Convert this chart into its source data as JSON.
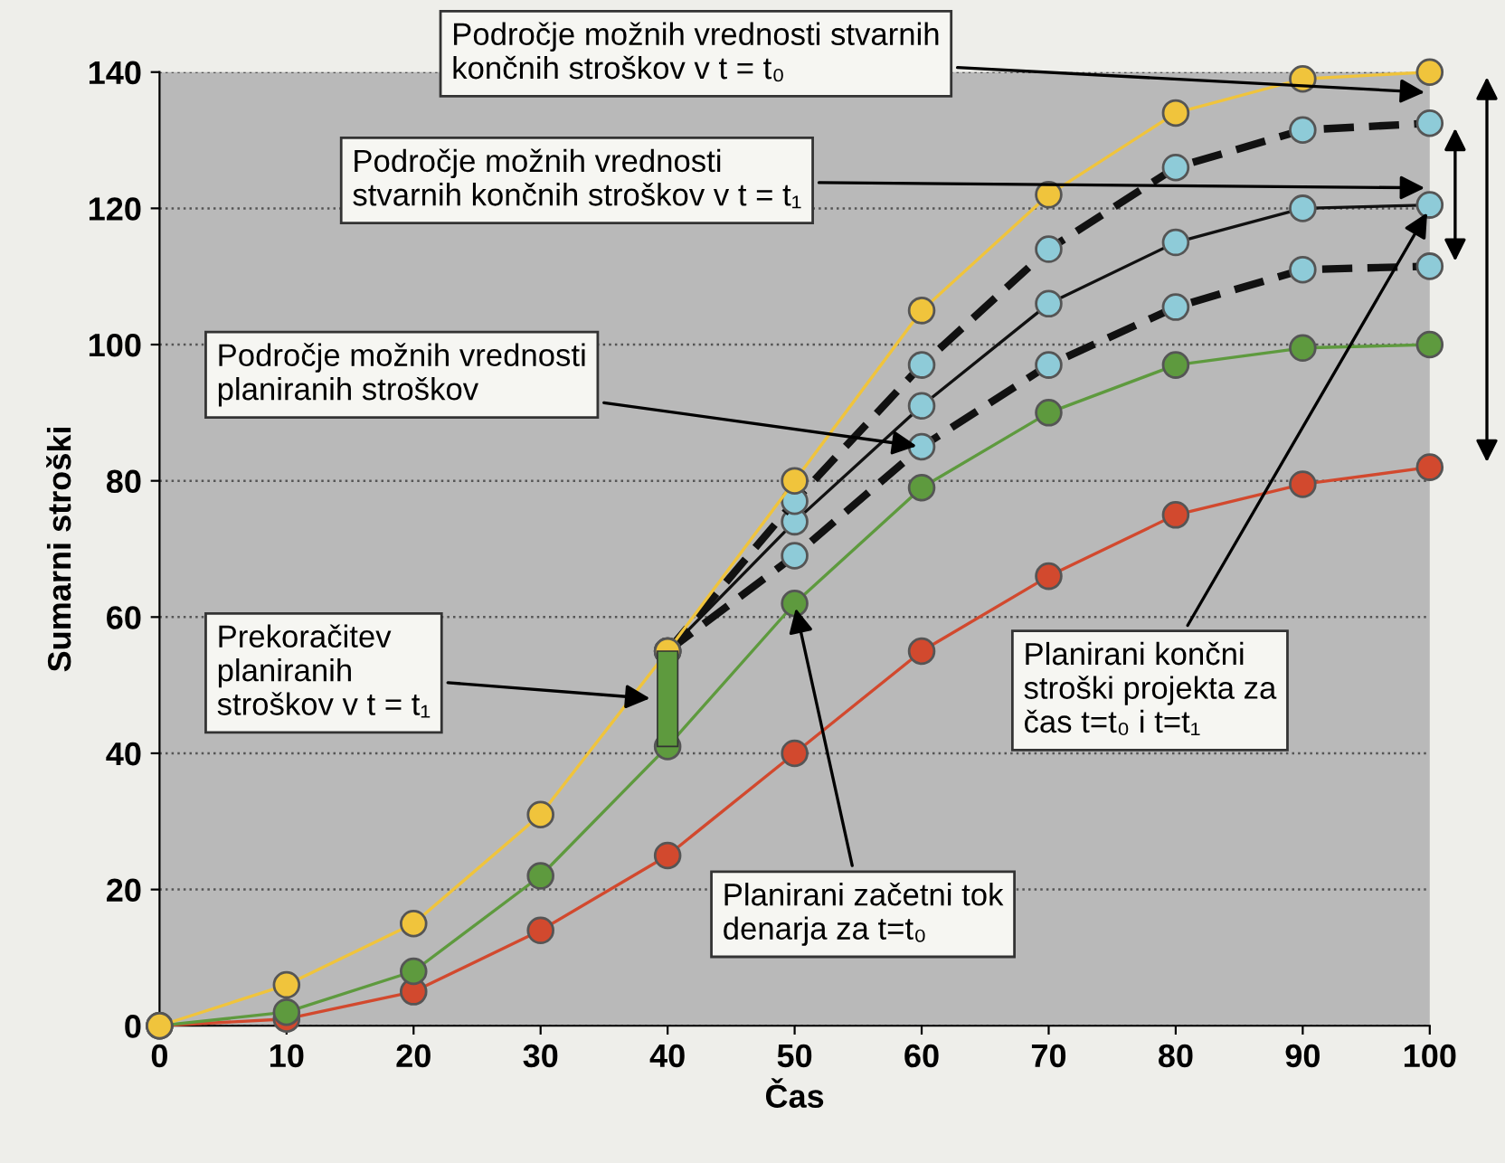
{
  "chart_data": {
    "type": "line",
    "xlabel": "Čas",
    "ylabel": "Sumarni stroški",
    "x": [
      0,
      10,
      20,
      30,
      40,
      50,
      60,
      70,
      80,
      90,
      100
    ],
    "series": [
      {
        "color": "#f0c43c",
        "values": [
          0,
          6,
          15,
          31,
          55,
          80,
          105,
          122,
          134,
          139,
          140
        ],
        "line_style": "solid"
      },
      {
        "color": "#5e9a3e",
        "values": [
          0,
          2,
          8,
          22,
          41,
          62,
          79,
          90,
          97,
          99.5,
          100
        ],
        "line_style": "solid"
      },
      {
        "color": "#d2492e",
        "values": [
          0,
          1,
          5,
          14,
          25,
          40,
          55,
          66,
          75,
          79.5,
          82
        ],
        "line_style": "solid"
      },
      {
        "color": "#8ecbd8",
        "x": [
          40,
          50,
          60,
          70,
          80,
          90,
          100
        ],
        "values": [
          55,
          77,
          97,
          114,
          126,
          131.5,
          132.5
        ],
        "line_style": "dashed"
      },
      {
        "color": "#8ecbd8",
        "x": [
          40,
          50,
          60,
          70,
          80,
          90,
          100
        ],
        "values": [
          55,
          74,
          91,
          106,
          115,
          120,
          120.5
        ],
        "line_style": "solid"
      },
      {
        "color": "#8ecbd8",
        "x": [
          40,
          50,
          60,
          70,
          80,
          90,
          100
        ],
        "values": [
          55,
          69,
          85,
          97,
          105.5,
          111,
          111.5
        ],
        "line_style": "dashed"
      },
      {
        "type": "bar",
        "color": "#5e9a3e",
        "x": [
          40
        ],
        "base": [
          41
        ],
        "values": [
          14
        ]
      }
    ],
    "marker": "circle",
    "xlim": [
      0,
      100
    ],
    "ylim": [
      0,
      140
    ],
    "xticks": [
      0,
      10,
      20,
      30,
      40,
      50,
      60,
      70,
      80,
      90,
      100
    ],
    "yticks": [
      0,
      20,
      40,
      60,
      80,
      100,
      120,
      140
    ],
    "grid": "y",
    "annotations": [
      {
        "text": "Področje možnih vrednosti stvarnih\nkončnih stroškov v t = t₀",
        "x": 100,
        "y": 137
      },
      {
        "text": "Področje možnih vrednosti\nstvarnih končnih stroškov v t = t₁",
        "x": 100,
        "y": 123
      },
      {
        "text": "Področje možnih vrednosti\nplaniranih stroškov",
        "x": 60,
        "y": 85
      },
      {
        "text": "Prekoračitev\nplaniranih\nstroškov v t = t₁",
        "x": 39,
        "y": 48
      },
      {
        "text": "Planirani začetni tok\ndenarja za t=t₀",
        "x": 50,
        "y": 62
      },
      {
        "text": "Planirani končni\nstroški projekta za\nčas t=t₀ i t=t₁",
        "x": 100,
        "y": 120
      }
    ]
  }
}
